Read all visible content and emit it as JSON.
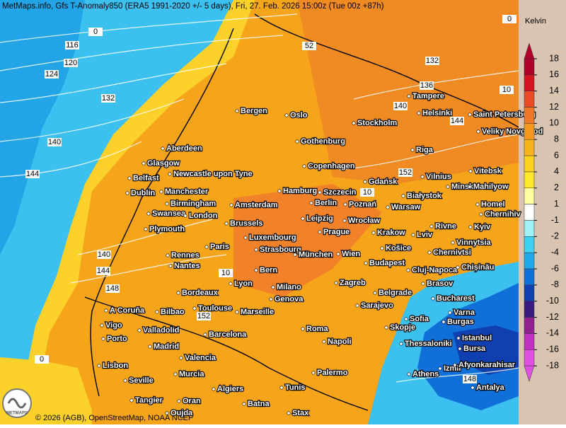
{
  "header": {
    "title": "MetMaps.info, Gfs T-Anomaly850 (ERA5 1991-2020 +/- 5 days), Fri, 27. Feb. 2026 15:00z (Tue 00z +87h)"
  },
  "legend": {
    "unit": "Kelvin",
    "ticks": [
      18,
      16,
      14,
      12,
      10,
      8,
      6,
      4,
      2,
      1,
      -1,
      -2,
      -4,
      -6,
      -8,
      -10,
      -12,
      -14,
      -16,
      -18
    ],
    "colors": [
      "#b0002a",
      "#d4141e",
      "#eb4a26",
      "#f07828",
      "#f59a1e",
      "#f8b41c",
      "#fbd21e",
      "#ffe82a",
      "#ffffa0",
      "#ffffff",
      "#a0f0f8",
      "#40d0f0",
      "#20a8e8",
      "#1070d8",
      "#1040b0",
      "#3a1a80",
      "#902090",
      "#c030c0",
      "#e050e0"
    ]
  },
  "cities": [
    "Bergen",
    "Oslo",
    "Tampere",
    "Helsinki",
    "Saint Petersburg",
    "Stockholm",
    "Veliky Novgorod",
    "Aberdeen",
    "Gothenburg",
    "Riga",
    "Glasgow",
    "Copenhagen",
    "Vitebsk",
    "Belfast",
    "Newcastle upon Tyne",
    "Gdańsk",
    "Vilnius",
    "Dublin",
    "Manchester",
    "Hamburg",
    "Szczecin",
    "Minsk",
    "Mahilyow",
    "Białystok",
    "Birmingham",
    "Amsterdam",
    "Berlin",
    "Poznań",
    "Warsaw",
    "Homel",
    "Swansea",
    "London",
    "Chernihiv",
    "Plymouth",
    "Brussels",
    "Leipzig",
    "Wrocław",
    "Rivne",
    "Kyiv",
    "Luxembourg",
    "Prague",
    "Krakow",
    "Lviv",
    "Vinnytsia",
    "Paris",
    "Strasbourg",
    "Rennes",
    "München",
    "Wien",
    "Košice",
    "Chernivtsi",
    "Nantes",
    "Budapest",
    "Cluj-Napoca",
    "Chișinău",
    "Bern",
    "Brasov",
    "Lyon",
    "Milano",
    "Bordeaux",
    "Zagreb",
    "Genova",
    "Belgrade",
    "Bucharest",
    "A Coruña",
    "Bilbao",
    "Toulouse",
    "Marseille",
    "Sarajevo",
    "Varna",
    "Vigo",
    "Sofia",
    "Burgas",
    "Valladolid",
    "Skopje",
    "Roma",
    "Porto",
    "Istanbul",
    "Barcelona",
    "Thessaloniki",
    "Bursa",
    "Madrid",
    "Napoli",
    "Valencia",
    "Lisbon",
    "Izmir",
    "Afyonkarahisar",
    "Seville",
    "Murcia",
    "Palermo",
    "Athens",
    "Antalya",
    "Algiers",
    "Tunis",
    "Tangier",
    "Oran",
    "Batna",
    "Oujda",
    "Stax"
  ],
  "contour_labels": [
    116,
    120,
    124,
    132,
    140,
    144,
    140,
    144,
    148,
    0,
    0,
    52,
    132,
    136,
    140,
    144,
    10,
    152,
    10,
    10,
    152,
    148,
    0
  ],
  "footer": {
    "credit": "© 2026 (AGB), OpenStreetMap, NOAA NCEP",
    "logo": "METMAPS"
  }
}
